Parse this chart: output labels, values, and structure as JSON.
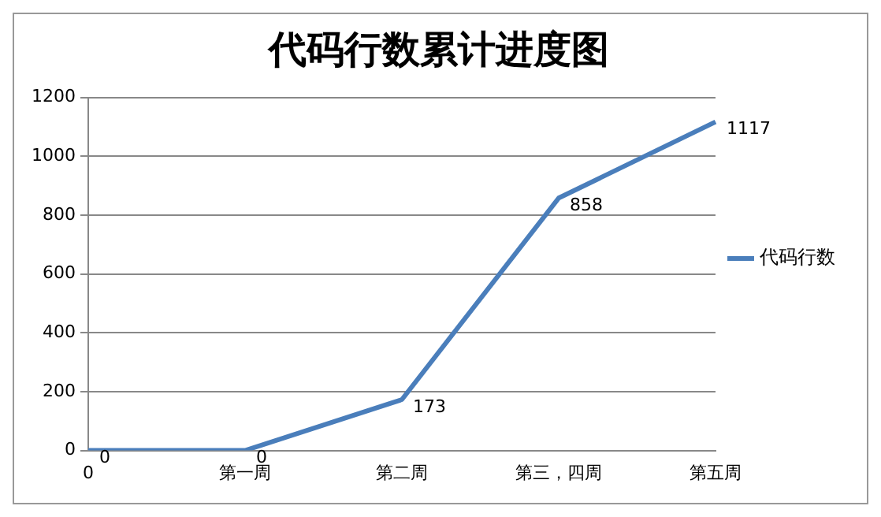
{
  "chart_data": {
    "type": "line",
    "title": "代码行数累计进度图",
    "categories": [
      "0",
      "第一周",
      "第二周",
      "第三，四周",
      "第五周"
    ],
    "series": [
      {
        "name": "代码行数",
        "color": "#4a7ebb",
        "values": [
          0,
          0,
          173,
          858,
          1117
        ]
      }
    ],
    "ylim": [
      0,
      1200
    ],
    "yticks": [
      0,
      200,
      400,
      600,
      800,
      1000,
      1200
    ],
    "grid": "y",
    "legend": "right",
    "marker": "none",
    "line_style": "solid",
    "data_labels": true
  }
}
